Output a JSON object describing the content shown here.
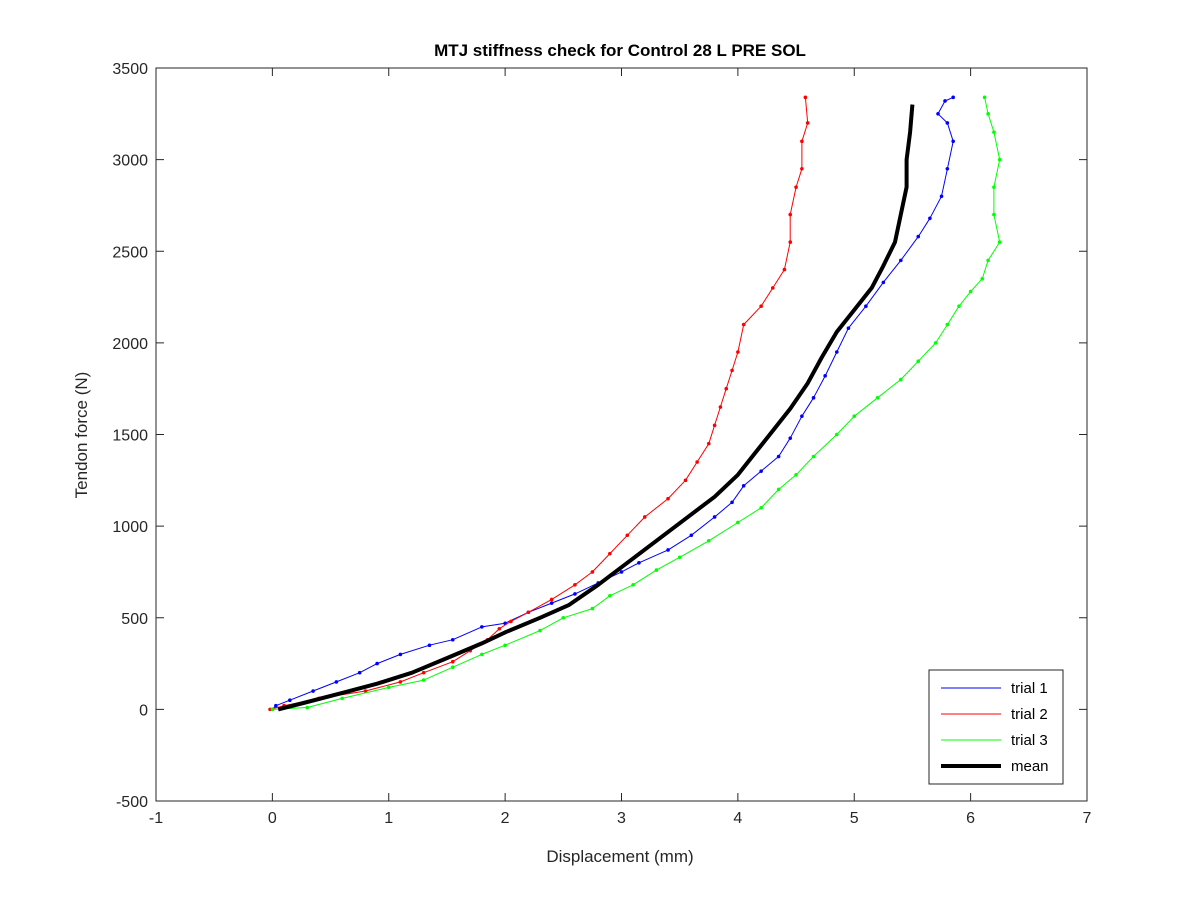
{
  "chart_data": {
    "type": "line",
    "title": "MTJ stiffness check for Control 28 L PRE SOL",
    "xlabel": "Displacement (mm)",
    "ylabel": "Tendon force (N)",
    "xlim": [
      -1,
      7
    ],
    "ylim": [
      -500,
      3500
    ],
    "xticks": [
      -1,
      0,
      1,
      2,
      3,
      4,
      5,
      6,
      7
    ],
    "yticks": [
      -500,
      0,
      500,
      1000,
      1500,
      2000,
      2500,
      3000,
      3500
    ],
    "grid": false,
    "legend_position": "bottom-right",
    "series": [
      {
        "name": "trial 1",
        "color": "#0000ff",
        "markers": true,
        "points": [
          [
            0,
            0
          ],
          [
            0.03,
            20
          ],
          [
            0.15,
            50
          ],
          [
            0.35,
            100
          ],
          [
            0.55,
            150
          ],
          [
            0.75,
            200
          ],
          [
            0.9,
            250
          ],
          [
            1.1,
            300
          ],
          [
            1.35,
            350
          ],
          [
            1.55,
            380
          ],
          [
            1.8,
            450
          ],
          [
            2.0,
            470
          ],
          [
            2.2,
            530
          ],
          [
            2.4,
            580
          ],
          [
            2.6,
            630
          ],
          [
            2.8,
            690
          ],
          [
            3.0,
            750
          ],
          [
            3.15,
            800
          ],
          [
            3.4,
            870
          ],
          [
            3.6,
            950
          ],
          [
            3.8,
            1050
          ],
          [
            3.95,
            1130
          ],
          [
            4.05,
            1220
          ],
          [
            4.2,
            1300
          ],
          [
            4.35,
            1380
          ],
          [
            4.45,
            1480
          ],
          [
            4.55,
            1600
          ],
          [
            4.65,
            1700
          ],
          [
            4.75,
            1820
          ],
          [
            4.85,
            1950
          ],
          [
            4.95,
            2080
          ],
          [
            5.1,
            2200
          ],
          [
            5.25,
            2330
          ],
          [
            5.4,
            2450
          ],
          [
            5.55,
            2580
          ],
          [
            5.65,
            2680
          ],
          [
            5.75,
            2800
          ],
          [
            5.8,
            2950
          ],
          [
            5.85,
            3100
          ],
          [
            5.8,
            3200
          ],
          [
            5.72,
            3250
          ],
          [
            5.78,
            3320
          ],
          [
            5.85,
            3340
          ]
        ]
      },
      {
        "name": "trial 2",
        "color": "#ff0000",
        "markers": true,
        "points": [
          [
            -0.02,
            0
          ],
          [
            0.1,
            20
          ],
          [
            0.4,
            60
          ],
          [
            0.8,
            100
          ],
          [
            1.1,
            150
          ],
          [
            1.3,
            200
          ],
          [
            1.55,
            260
          ],
          [
            1.7,
            320
          ],
          [
            1.85,
            380
          ],
          [
            1.95,
            440
          ],
          [
            2.05,
            480
          ],
          [
            2.2,
            530
          ],
          [
            2.4,
            600
          ],
          [
            2.6,
            680
          ],
          [
            2.75,
            750
          ],
          [
            2.9,
            850
          ],
          [
            3.05,
            950
          ],
          [
            3.2,
            1050
          ],
          [
            3.4,
            1150
          ],
          [
            3.55,
            1250
          ],
          [
            3.65,
            1350
          ],
          [
            3.75,
            1450
          ],
          [
            3.8,
            1550
          ],
          [
            3.85,
            1650
          ],
          [
            3.9,
            1750
          ],
          [
            3.95,
            1850
          ],
          [
            4.0,
            1950
          ],
          [
            4.05,
            2100
          ],
          [
            4.2,
            2200
          ],
          [
            4.3,
            2300
          ],
          [
            4.4,
            2400
          ],
          [
            4.45,
            2550
          ],
          [
            4.45,
            2700
          ],
          [
            4.5,
            2850
          ],
          [
            4.55,
            2950
          ],
          [
            4.55,
            3100
          ],
          [
            4.6,
            3200
          ],
          [
            4.58,
            3340
          ]
        ]
      },
      {
        "name": "trial 3",
        "color": "#00ff00",
        "markers": true,
        "points": [
          [
            0,
            0
          ],
          [
            0.3,
            10
          ],
          [
            0.6,
            60
          ],
          [
            1.0,
            120
          ],
          [
            1.3,
            160
          ],
          [
            1.55,
            230
          ],
          [
            1.8,
            300
          ],
          [
            2.0,
            350
          ],
          [
            2.3,
            430
          ],
          [
            2.5,
            500
          ],
          [
            2.75,
            550
          ],
          [
            2.9,
            620
          ],
          [
            3.1,
            680
          ],
          [
            3.3,
            760
          ],
          [
            3.5,
            830
          ],
          [
            3.75,
            920
          ],
          [
            4.0,
            1020
          ],
          [
            4.2,
            1100
          ],
          [
            4.35,
            1200
          ],
          [
            4.5,
            1280
          ],
          [
            4.65,
            1380
          ],
          [
            4.85,
            1500
          ],
          [
            5.0,
            1600
          ],
          [
            5.2,
            1700
          ],
          [
            5.4,
            1800
          ],
          [
            5.55,
            1900
          ],
          [
            5.7,
            2000
          ],
          [
            5.8,
            2100
          ],
          [
            5.9,
            2200
          ],
          [
            6.0,
            2280
          ],
          [
            6.1,
            2350
          ],
          [
            6.15,
            2450
          ],
          [
            6.25,
            2550
          ],
          [
            6.2,
            2700
          ],
          [
            6.2,
            2850
          ],
          [
            6.25,
            3000
          ],
          [
            6.2,
            3150
          ],
          [
            6.15,
            3250
          ],
          [
            6.12,
            3340
          ]
        ]
      },
      {
        "name": "mean",
        "color": "#000000",
        "markers": false,
        "bold": true,
        "points": [
          [
            0.05,
            0
          ],
          [
            0.3,
            40
          ],
          [
            0.6,
            90
          ],
          [
            0.9,
            140
          ],
          [
            1.2,
            200
          ],
          [
            1.5,
            280
          ],
          [
            1.8,
            360
          ],
          [
            2.0,
            420
          ],
          [
            2.3,
            500
          ],
          [
            2.55,
            570
          ],
          [
            2.8,
            680
          ],
          [
            3.05,
            800
          ],
          [
            3.3,
            920
          ],
          [
            3.55,
            1040
          ],
          [
            3.8,
            1160
          ],
          [
            4.0,
            1280
          ],
          [
            4.15,
            1400
          ],
          [
            4.3,
            1520
          ],
          [
            4.45,
            1640
          ],
          [
            4.6,
            1780
          ],
          [
            4.72,
            1920
          ],
          [
            4.85,
            2060
          ],
          [
            5.0,
            2180
          ],
          [
            5.15,
            2300
          ],
          [
            5.25,
            2420
          ],
          [
            5.35,
            2550
          ],
          [
            5.4,
            2700
          ],
          [
            5.45,
            2850
          ],
          [
            5.45,
            3000
          ],
          [
            5.48,
            3150
          ],
          [
            5.5,
            3300
          ]
        ]
      }
    ]
  }
}
